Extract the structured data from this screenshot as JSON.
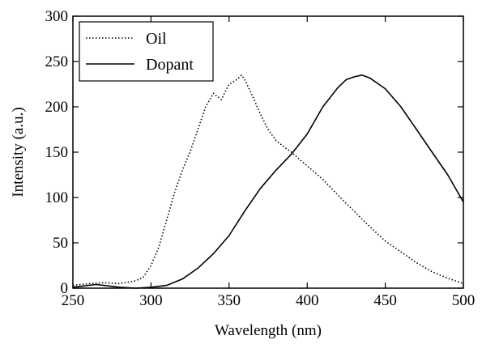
{
  "chart_data": {
    "type": "line",
    "xlabel": "Wavelength (nm)",
    "ylabel": "Intensity (a.u.)",
    "xlim": [
      250,
      500
    ],
    "ylim": [
      0,
      300
    ],
    "x_ticks": [
      250,
      300,
      350,
      400,
      450,
      500
    ],
    "y_ticks": [
      0,
      50,
      100,
      150,
      200,
      250,
      300
    ],
    "grid": false,
    "legend_position": "top-left",
    "series": [
      {
        "name": "Oil",
        "style": "dotted",
        "color": "#000000",
        "x": [
          250,
          260,
          270,
          280,
          290,
          295,
          300,
          305,
          310,
          315,
          320,
          325,
          330,
          335,
          340,
          345,
          350,
          355,
          358,
          360,
          365,
          370,
          375,
          380,
          385,
          390,
          395,
          400,
          410,
          420,
          430,
          440,
          450,
          460,
          470,
          480,
          490,
          500
        ],
        "y": [
          3,
          5,
          6,
          5,
          8,
          12,
          25,
          45,
          75,
          105,
          130,
          150,
          175,
          200,
          215,
          208,
          225,
          230,
          235,
          230,
          212,
          192,
          175,
          163,
          156,
          150,
          142,
          135,
          120,
          102,
          85,
          68,
          52,
          40,
          28,
          18,
          11,
          5
        ]
      },
      {
        "name": "Dopant",
        "style": "solid",
        "color": "#000000",
        "x": [
          250,
          260,
          265,
          270,
          280,
          290,
          300,
          310,
          320,
          330,
          340,
          350,
          360,
          370,
          380,
          390,
          400,
          410,
          420,
          425,
          430,
          435,
          440,
          450,
          460,
          470,
          480,
          490,
          500
        ],
        "y": [
          1,
          3,
          4,
          3,
          1,
          0,
          1,
          3,
          10,
          22,
          38,
          58,
          85,
          110,
          130,
          148,
          170,
          200,
          222,
          230,
          233,
          235,
          232,
          220,
          200,
          175,
          150,
          125,
          95
        ]
      }
    ]
  }
}
